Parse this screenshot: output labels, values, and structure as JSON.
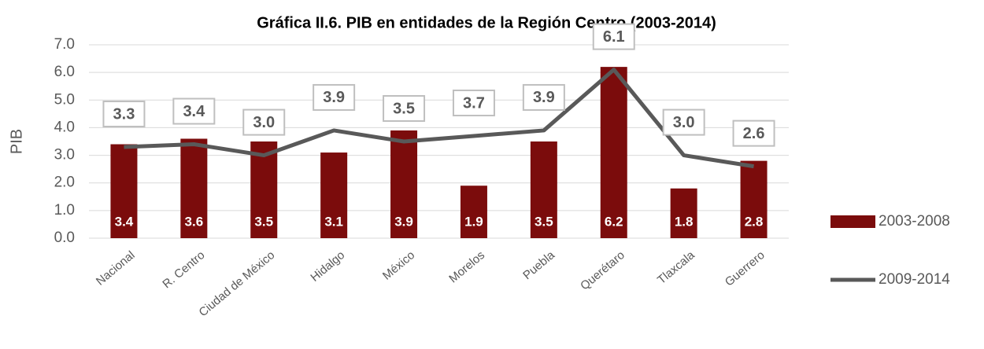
{
  "chart_data": {
    "type": "bar_line",
    "title": "Gráfica II.6. PIB en entidades de la Región Centro (2003-2014)",
    "y_label": "PIB",
    "categories": [
      "Nacional",
      "R. Centro",
      "Ciudad de México",
      "Hidalgo",
      "México",
      "Morelos",
      "Puebla",
      "Querétaro",
      "Tlaxcala",
      "Guerrero"
    ],
    "series": [
      {
        "name": "2003-2008",
        "type": "bar",
        "color": "#7b0c0c",
        "values": [
          3.4,
          3.6,
          3.5,
          3.1,
          3.9,
          1.9,
          3.5,
          6.2,
          1.8,
          2.8
        ],
        "value_labels": [
          "3.4",
          "3.6",
          "3.5",
          "3.1",
          "3.9",
          "1.9",
          "3.5",
          "6.2",
          "1.8",
          "2.8"
        ]
      },
      {
        "name": "2009-2014",
        "type": "line",
        "color": "#595959",
        "values": [
          3.3,
          3.4,
          3.0,
          3.9,
          3.5,
          3.7,
          3.9,
          6.1,
          3.0,
          2.6
        ],
        "value_labels": [
          "3.3",
          "3.4",
          "3.0",
          "3.9",
          "3.5",
          "3.7",
          "3.9",
          "6.1",
          "3.0",
          "2.6"
        ]
      }
    ],
    "ylim": [
      0,
      7
    ],
    "yticks": [
      {
        "value": 0,
        "label": "0.0"
      },
      {
        "value": 1,
        "label": "1.0"
      },
      {
        "value": 2,
        "label": "2.0"
      },
      {
        "value": 3,
        "label": "3.0"
      },
      {
        "value": 4,
        "label": "4.0"
      },
      {
        "value": 5,
        "label": "5.0"
      },
      {
        "value": 6,
        "label": "6.0"
      },
      {
        "value": 7,
        "label": "7.0"
      }
    ],
    "grid": true,
    "legend": "right"
  }
}
